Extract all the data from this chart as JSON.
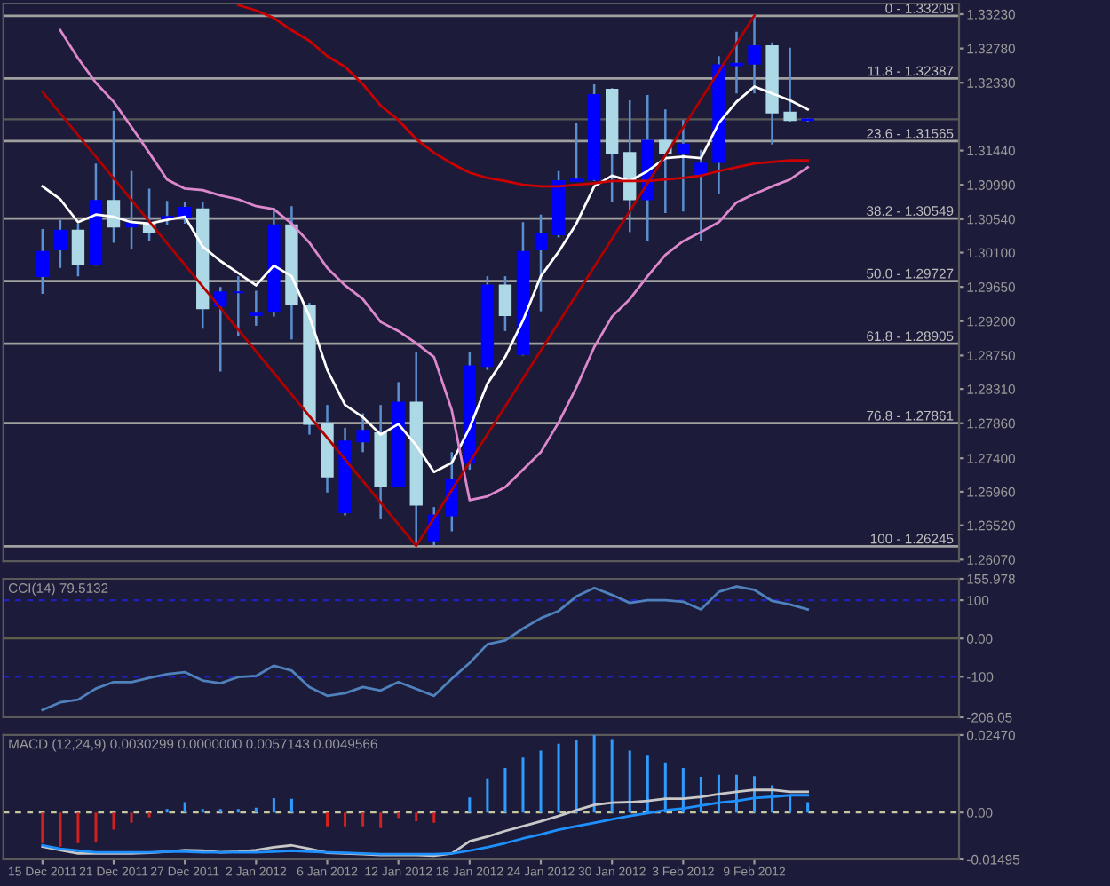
{
  "chart_data": [
    {
      "type": "candlestick",
      "categories": [
        null,
        null,
        null,
        null,
        null,
        null,
        null,
        null,
        null,
        null,
        null,
        null,
        null,
        null,
        null,
        null,
        null,
        null,
        null,
        null,
        null,
        null,
        null,
        null,
        null,
        null,
        null,
        null,
        null,
        null,
        null,
        null,
        null,
        null,
        null,
        null,
        null,
        null,
        null,
        null,
        null,
        null,
        null,
        null
      ],
      "ohlc": [
        [
          1.2979,
          1.3041,
          1.2956,
          1.3011
        ],
        [
          1.3014,
          1.3053,
          1.299,
          1.3039
        ],
        [
          1.3039,
          1.3048,
          1.2979,
          1.2995
        ],
        [
          1.2995,
          1.3127,
          1.2993,
          1.3078
        ],
        [
          1.3078,
          1.3196,
          1.3023,
          1.3044
        ],
        [
          1.3044,
          1.3117,
          1.3014,
          1.3048
        ],
        [
          1.3048,
          1.3094,
          1.3025,
          1.3037
        ],
        [
          1.3055,
          1.3078,
          1.3046,
          1.3057
        ],
        [
          1.3057,
          1.3076,
          1.3048,
          1.3069
        ],
        [
          1.3067,
          1.3076,
          1.291,
          1.2937
        ],
        [
          1.294,
          1.2965,
          1.2854,
          1.2958
        ],
        [
          1.2958,
          1.2979,
          1.29,
          1.2958
        ],
        [
          1.2928,
          1.296,
          1.2914,
          1.293
        ],
        [
          1.2933,
          1.3069,
          1.2926,
          1.3046
        ],
        [
          1.3046,
          1.3071,
          1.2896,
          1.2942
        ],
        [
          1.294,
          1.2944,
          1.2771,
          1.2785
        ],
        [
          1.2785,
          1.281,
          1.2695,
          1.2716
        ],
        [
          1.2669,
          1.278,
          1.2665,
          1.2762
        ],
        [
          1.2762,
          1.2799,
          1.2748,
          1.2776
        ],
        [
          1.2773,
          1.281,
          1.266,
          1.2704
        ],
        [
          1.2704,
          1.284,
          1.2702,
          1.2813
        ],
        [
          1.2813,
          1.288,
          1.2625,
          1.2679
        ],
        [
          1.2632,
          1.2676,
          1.2626,
          1.2665
        ],
        [
          1.2665,
          1.2748,
          1.2644,
          1.2711
        ],
        [
          1.2734,
          1.288,
          1.2725,
          1.2861
        ],
        [
          1.2861,
          1.2979,
          1.2856,
          1.2967
        ],
        [
          1.2967,
          1.2979,
          1.2907,
          1.2928
        ],
        [
          1.2877,
          1.305,
          1.2875,
          1.3011
        ],
        [
          1.3014,
          1.306,
          1.2933,
          1.3034
        ],
        [
          1.3034,
          1.3117,
          1.303,
          1.3104
        ],
        [
          1.3104,
          1.318,
          1.3104,
          1.3106
        ],
        [
          1.3106,
          1.3231,
          1.3104,
          1.3217
        ],
        [
          1.3224,
          1.3226,
          1.3076,
          1.3141
        ],
        [
          1.3141,
          1.321,
          1.3037,
          1.308
        ],
        [
          1.308,
          1.3217,
          1.3025,
          1.3157
        ],
        [
          1.3157,
          1.3198,
          1.3062,
          1.3141
        ],
        [
          1.3141,
          1.3184,
          1.3064,
          1.3152
        ],
        [
          1.3113,
          1.3145,
          1.3025,
          1.3127
        ],
        [
          1.3129,
          1.3268,
          1.3087,
          1.3256
        ],
        [
          1.3256,
          1.33,
          1.3219,
          1.3258
        ],
        [
          1.3258,
          1.3321,
          1.3219,
          1.3281
        ],
        [
          1.3281,
          1.3286,
          1.3152,
          1.3194
        ],
        [
          1.3194,
          1.3279,
          1.3182,
          1.3184
        ],
        [
          1.3184,
          1.3186,
          1.3182,
          1.3185
        ]
      ],
      "colors": [
        "#0000ff",
        "#0000ff",
        "#add8e6",
        "#0000ff",
        "#add8e6",
        "#0000ff",
        "#add8e6",
        "#0000ff",
        "#0000ff",
        "#add8e6",
        "#0000ff",
        "#0000ff",
        "#0000ff",
        "#0000ff",
        "#add8e6",
        "#add8e6",
        "#add8e6",
        "#0000ff",
        "#0000ff",
        "#add8e6",
        "#0000ff",
        "#add8e6",
        "#0000ff",
        "#0000ff",
        "#0000ff",
        "#0000ff",
        "#add8e6",
        "#0000ff",
        "#0000ff",
        "#0000ff",
        "#0000ff",
        "#0000ff",
        "#add8e6",
        "#add8e6",
        "#0000ff",
        "#add8e6",
        "#0000ff",
        "#0000ff",
        "#0000ff",
        "#0000ff",
        "#0000ff",
        "#add8e6",
        "#add8e6",
        "#0000ff"
      ],
      "series": [
        {
          "type": "line",
          "color": "#ffffff",
          "values": [
            1.3097,
            1.308,
            1.305,
            1.306,
            1.3057,
            1.305,
            1.3048,
            1.3053,
            1.3057,
            1.3018,
            1.2999,
            1.2983,
            1.2967,
            1.2993,
            1.2979,
            1.2926,
            1.2856,
            1.281,
            1.2794,
            1.2771,
            1.2785,
            1.2757,
            1.2722,
            1.2734,
            1.278,
            1.2838,
            1.2873,
            1.2921,
            1.2979,
            1.3011,
            1.3048,
            1.3097,
            1.3111,
            1.3104,
            1.3117,
            1.3134,
            1.3136,
            1.3134,
            1.318,
            1.3208,
            1.3228,
            1.3219,
            1.321,
            1.3198
          ]
        },
        {
          "type": "line",
          "color": "#cc0000",
          "values": [
            null,
            null,
            null,
            null,
            null,
            null,
            null,
            null,
            null,
            null,
            null,
            1.3335,
            1.3328,
            1.3318,
            1.3302,
            1.3288,
            1.3268,
            1.3254,
            1.3231,
            1.3203,
            1.3184,
            1.3159,
            1.3141,
            1.3127,
            1.3115,
            1.3108,
            1.3104,
            1.3099,
            1.3097,
            1.3097,
            1.3099,
            1.3101,
            1.3104,
            1.3104,
            1.3104,
            1.3106,
            1.3108,
            1.3111,
            1.3117,
            1.3122,
            1.3127,
            1.3129,
            1.3131,
            1.3131
          ]
        },
        {
          "type": "line",
          "color": "#dd88cc",
          "values": [
            null,
            1.3302,
            1.3265,
            1.3233,
            1.3208,
            1.3175,
            1.3141,
            1.3106,
            1.3094,
            1.3092,
            1.3085,
            1.308,
            1.3071,
            1.3067,
            1.3048,
            1.3023,
            1.299,
            1.2967,
            1.2949,
            1.2919,
            1.2907,
            1.2891,
            1.2873,
            1.2803,
            1.2685,
            1.269,
            1.2702,
            1.2725,
            1.2748,
            1.2787,
            1.2833,
            1.2886,
            1.2926,
            1.2949,
            1.2979,
            1.3007,
            1.3025,
            1.3037,
            1.305,
            1.3076,
            1.3087,
            1.3097,
            1.3106,
            1.3122
          ]
        },
        {
          "type": "line",
          "color": "#b00000",
          "values": [
            1.3221,
            null,
            null,
            null,
            null,
            null,
            null,
            null,
            null,
            null,
            null,
            null,
            null,
            null,
            null,
            null,
            null,
            null,
            null,
            null,
            null,
            1.2625,
            null,
            null,
            null,
            null,
            null,
            null,
            null,
            null,
            null,
            null,
            null,
            null,
            null,
            null,
            null,
            null,
            null,
            null,
            1.3321,
            null,
            null,
            null
          ]
        }
      ],
      "ylim": [
        1.2605,
        1.3337
      ],
      "yticks": [
        {
          "value": 1.3323,
          "label": "1.33230"
        },
        {
          "value": 1.3278,
          "label": "1.32780"
        },
        {
          "value": 1.3233,
          "label": "1.32330"
        },
        {
          "value": 1.3144,
          "label": "1.31440"
        },
        {
          "value": 1.3099,
          "label": "1.30990"
        },
        {
          "value": 1.3054,
          "label": "1.30540"
        },
        {
          "value": 1.301,
          "label": "1.30100"
        },
        {
          "value": 1.2965,
          "label": "1.29650"
        },
        {
          "value": 1.292,
          "label": "1.29200"
        },
        {
          "value": 1.2875,
          "label": "1.28750"
        },
        {
          "value": 1.2831,
          "label": "1.28310"
        },
        {
          "value": 1.2786,
          "label": "1.27860"
        },
        {
          "value": 1.274,
          "label": "1.27400"
        },
        {
          "value": 1.2696,
          "label": "1.26960"
        },
        {
          "value": 1.2652,
          "label": "1.26520"
        },
        {
          "value": 1.2607,
          "label": "1.26070"
        }
      ],
      "ref_lines": [
        {
          "axis": "y",
          "value": 1.33209,
          "color": "#a0a0a0"
        },
        {
          "axis": "y",
          "value": 1.32387,
          "color": "#a0a0a0"
        },
        {
          "axis": "y",
          "value": 1.31565,
          "color": "#a0a0a0"
        },
        {
          "axis": "y",
          "value": 1.30549,
          "color": "#a0a0a0"
        },
        {
          "axis": "y",
          "value": 1.29727,
          "color": "#a0a0a0"
        },
        {
          "axis": "y",
          "value": 1.28905,
          "color": "#a0a0a0"
        },
        {
          "axis": "y",
          "value": 1.27861,
          "color": "#a0a0a0"
        },
        {
          "axis": "y",
          "value": 1.26245,
          "color": "#a0a0a0"
        },
        {
          "axis": "y",
          "value": 1.3185,
          "color": "#5a5a5a"
        }
      ],
      "annotations": [
        {
          "text": "0 - 1.33209",
          "y": 1.33209
        },
        {
          "text": "11.8 - 1.32387",
          "y": 1.32387
        },
        {
          "text": "23.6 - 1.31565",
          "y": 1.31565
        },
        {
          "text": "38.2 - 1.30549",
          "y": 1.30549
        },
        {
          "text": "50.0 - 1.29727",
          "y": 1.29727
        },
        {
          "text": "61.8 - 1.28905",
          "y": 1.28905
        },
        {
          "text": "76.8 - 1.27861",
          "y": 1.27861
        },
        {
          "text": "100 - 1.26245",
          "y": 1.26245
        }
      ],
      "tick_labels": "y"
    },
    {
      "type": "line",
      "title": "CCI(14) 79.5132",
      "categories": [
        null,
        null,
        null,
        null,
        null,
        null,
        null,
        null,
        null,
        null,
        null,
        null,
        null,
        null,
        null,
        null,
        null,
        null,
        null,
        null,
        null,
        null,
        null,
        null,
        null,
        null,
        null,
        null,
        null,
        null,
        null,
        null,
        null,
        null,
        null,
        null,
        null,
        null,
        null,
        null,
        null,
        null,
        null,
        null
      ],
      "series": [
        {
          "color": "#4f81bd",
          "values": [
            -187,
            -167,
            -160,
            -131,
            -114,
            -114,
            -103,
            -93,
            -88,
            -110,
            -117,
            -101,
            -98,
            -71,
            -84,
            -127,
            -150,
            -143,
            -127,
            -136,
            -114,
            -132,
            -150,
            -105,
            -64,
            -15,
            -5,
            26,
            53,
            72,
            110,
            132,
            114,
            93,
            100,
            100,
            96,
            76,
            122,
            136,
            127,
            98,
            89,
            76
          ]
        }
      ],
      "ylim": [
        -206.05,
        155.978
      ],
      "yticks": [
        {
          "value": 155.978,
          "label": "155.978"
        },
        100,
        {
          "value": 0,
          "label": "0.00"
        },
        -100,
        {
          "value": -206.05,
          "label": "-206.05"
        }
      ],
      "ref_lines": [
        {
          "axis": "y",
          "value": 100,
          "color": "#2020c0",
          "line_style": "dashed"
        },
        {
          "axis": "y",
          "value": -100,
          "color": "#2020c0",
          "line_style": "dashed"
        },
        {
          "axis": "y",
          "value": 0,
          "color": "#606048",
          "line_style": "solid"
        }
      ],
      "tick_labels": "y"
    },
    {
      "type": "bar",
      "title": "MACD (12,24,9) 0.0030299 0.0000000 0.0057143 0.0049566",
      "categories": [
        "15 Dec 2011",
        null,
        null,
        null,
        "21 Dec 2011",
        null,
        null,
        null,
        "27 Dec 2011",
        null,
        null,
        null,
        "2 Jan 2012",
        null,
        null,
        null,
        "6 Jan 2012",
        null,
        null,
        null,
        "12 Jan 2012",
        null,
        null,
        null,
        "18 Jan 2012",
        null,
        null,
        null,
        "24 Jan 2012",
        null,
        null,
        null,
        "30 Jan 2012",
        null,
        null,
        null,
        "3 Feb 2012",
        null,
        null,
        null,
        "9 Feb 2012",
        null,
        null,
        null
      ],
      "series": [
        {
          "type": "bar",
          "values": [
            -0.0098,
            -0.0109,
            -0.0098,
            -0.0094,
            -0.0055,
            -0.0033,
            -0.0015,
            0.0011,
            0.0033,
            0.0011,
            0.0011,
            0.0011,
            0.0015,
            0.0046,
            0.0044,
            0,
            -0.0044,
            -0.0044,
            -0.0044,
            -0.005,
            -0.0017,
            -0.0028,
            -0.0033,
            0,
            0.0048,
            0.0109,
            0.0142,
            0.0175,
            0.0197,
            0.0219,
            0.023,
            0.0247,
            0.0234,
            0.0197,
            0.0181,
            0.016,
            0.0142,
            0.0114,
            0.012,
            0.012,
            0.0116,
            0.0087,
            0.0055,
            0.0033
          ],
          "colors": [
            "#d02020",
            "#d02020",
            "#d02020",
            "#d02020",
            "#d02020",
            "#d02020",
            "#d02020",
            "#2f9bff",
            "#2f9bff",
            "#2f9bff",
            "#2f9bff",
            "#2f9bff",
            "#2f9bff",
            "#2f9bff",
            "#2f9bff",
            "#2f9bff",
            "#d02020",
            "#d02020",
            "#d02020",
            "#d02020",
            "#d02020",
            "#d02020",
            "#d02020",
            "#2f9bff",
            "#2f9bff",
            "#2f9bff",
            "#2f9bff",
            "#2f9bff",
            "#2f9bff",
            "#2f9bff",
            "#2f9bff",
            "#2f9bff",
            "#2f9bff",
            "#2f9bff",
            "#2f9bff",
            "#2f9bff",
            "#2f9bff",
            "#2f9bff",
            "#2f9bff",
            "#2f9bff",
            "#2f9bff",
            "#2f9bff",
            "#2f9bff",
            "#2f9bff"
          ]
        },
        {
          "type": "line",
          "color": "#c8c8c8",
          "values": [
            -0.0109,
            -0.012,
            -0.0131,
            -0.0131,
            -0.0131,
            -0.0131,
            -0.0129,
            -0.0125,
            -0.012,
            -0.0122,
            -0.0127,
            -0.0125,
            -0.012,
            -0.0111,
            -0.0105,
            -0.0116,
            -0.0129,
            -0.0131,
            -0.0133,
            -0.0136,
            -0.0136,
            -0.0136,
            -0.0138,
            -0.0131,
            -0.0092,
            -0.0077,
            -0.0059,
            -0.0044,
            -0.0028,
            -0.0011,
            0.0007,
            0.0024,
            0.0031,
            0.0033,
            0.0037,
            0.0044,
            0.0044,
            0.005,
            0.0059,
            0.0066,
            0.0072,
            0.0072,
            0.0066,
            0.0066
          ]
        },
        {
          "type": "line",
          "color": "#1e90ff",
          "values": [
            -0.0105,
            -0.0116,
            -0.0122,
            -0.0127,
            -0.0127,
            -0.0127,
            -0.0127,
            -0.0125,
            -0.0125,
            -0.0127,
            -0.0127,
            -0.0127,
            -0.0127,
            -0.0125,
            -0.0122,
            -0.0125,
            -0.0127,
            -0.0129,
            -0.0131,
            -0.0133,
            -0.0133,
            -0.0133,
            -0.0133,
            -0.0131,
            -0.0122,
            -0.0111,
            -0.0098,
            -0.0083,
            -0.007,
            -0.0055,
            -0.0044,
            -0.0033,
            -0.0022,
            -0.0011,
            -0.0002,
            0.0007,
            0.0013,
            0.0022,
            0.0031,
            0.0037,
            0.0046,
            0.005,
            0.0055,
            0.0055
          ]
        }
      ],
      "ylim": [
        -0.01495,
        0.0247
      ],
      "yticks": [
        {
          "value": 0.0247,
          "label": "0.02470"
        },
        {
          "value": 0,
          "label": "0.00"
        },
        {
          "value": -0.01495,
          "label": "-0.01495"
        }
      ],
      "ref_lines": [
        {
          "axis": "y",
          "value": 0,
          "color": "#c8c8a0",
          "line_style": "dashed"
        }
      ]
    }
  ]
}
